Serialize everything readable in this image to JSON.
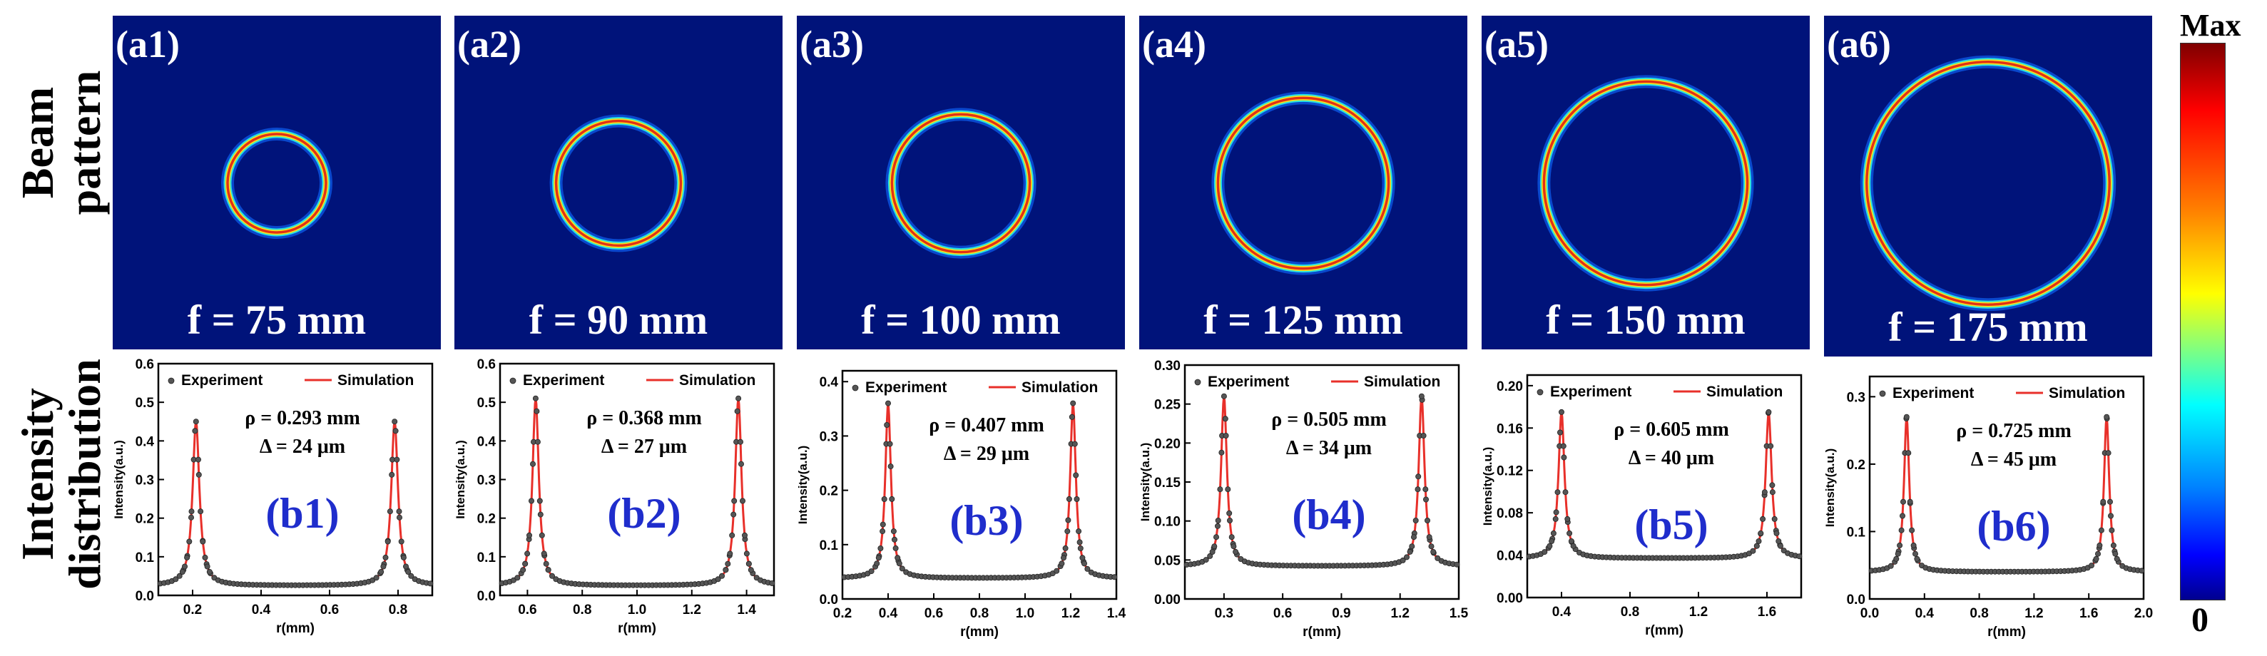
{
  "row_labels": {
    "top": [
      "Beam",
      "pattern"
    ],
    "bottom": [
      "Intensity",
      "distribution"
    ]
  },
  "colorbar": {
    "max_label": "Max",
    "min_label": "0"
  },
  "colors": {
    "panel_bg": "#00137a",
    "sim_line": "#e8302a",
    "exp_marker": "#555555",
    "label_blue": "#1f2dcc"
  },
  "panels": [
    {
      "tag": "(a1)",
      "focal": "f = 75 mm",
      "ring_scale": 0.3
    },
    {
      "tag": "(a2)",
      "focal": "f = 90 mm",
      "ring_scale": 0.38
    },
    {
      "tag": "(a3)",
      "focal": "f = 100 mm",
      "ring_scale": 0.42
    },
    {
      "tag": "(a4)",
      "focal": "f = 125 mm",
      "ring_scale": 0.52
    },
    {
      "tag": "(a5)",
      "focal": "f = 150 mm",
      "ring_scale": 0.62
    },
    {
      "tag": "(a6)",
      "focal": "f = 175 mm",
      "ring_scale": 0.74
    }
  ],
  "chart_data": [
    {
      "type": "line",
      "label": "(b1)",
      "rho": "ρ = 0.293 mm",
      "delta": "Δ = 24 μm",
      "xlabel": "r(mm)",
      "ylabel": "Intensity(a.u.)",
      "legend": [
        "Experiment",
        "Simulation"
      ],
      "xlim": [
        0.1,
        0.9
      ],
      "xticks": [
        0.2,
        0.4,
        0.6,
        0.8
      ],
      "xtick_labels": [
        "0.2",
        "0.4",
        "0.6",
        "0.8"
      ],
      "ylim": [
        0.0,
        0.6
      ],
      "yticks": [
        0.0,
        0.1,
        0.2,
        0.3,
        0.4,
        0.5,
        0.6
      ],
      "ytick_labels": [
        "0.0",
        "0.1",
        "0.2",
        "0.3",
        "0.4",
        "0.5",
        "0.6"
      ],
      "peaks": [
        0.21,
        0.79
      ],
      "peak_height": 0.45,
      "baseline": 0.025,
      "width": 0.012
    },
    {
      "type": "line",
      "label": "(b2)",
      "rho": "ρ = 0.368 mm",
      "delta": "Δ = 27 μm",
      "xlabel": "r(mm)",
      "ylabel": "Intensity(a.u.)",
      "legend": [
        "Experiment",
        "Simulation"
      ],
      "xlim": [
        0.5,
        1.5
      ],
      "xticks": [
        0.6,
        0.8,
        1.0,
        1.2,
        1.4
      ],
      "xtick_labels": [
        "0.6",
        "0.8",
        "1.0",
        "1.2",
        "1.4"
      ],
      "ylim": [
        0.0,
        0.6
      ],
      "yticks": [
        0.0,
        0.1,
        0.2,
        0.3,
        0.4,
        0.5,
        0.6
      ],
      "ytick_labels": [
        "0.0",
        "0.1",
        "0.2",
        "0.3",
        "0.4",
        "0.5",
        "0.6"
      ],
      "peaks": [
        0.63,
        1.37
      ],
      "peak_height": 0.51,
      "baseline": 0.025,
      "width": 0.014
    },
    {
      "type": "line",
      "label": "(b3)",
      "rho": "ρ = 0.407 mm",
      "delta": "Δ = 29 μm",
      "xlabel": "r(mm)",
      "ylabel": "Intensity(a.u.)",
      "legend": [
        "Experiment",
        "Simulation"
      ],
      "xlim": [
        0.2,
        1.4
      ],
      "xticks": [
        0.2,
        0.4,
        0.6,
        0.8,
        1.0,
        1.2,
        1.4
      ],
      "xtick_labels": [
        "0.2",
        "0.4",
        "0.6",
        "0.8",
        "1.0",
        "1.2",
        "1.4"
      ],
      "ylim": [
        0.0,
        0.42
      ],
      "yticks": [
        0.0,
        0.1,
        0.2,
        0.3,
        0.4
      ],
      "ytick_labels": [
        "0.0",
        "0.1",
        "0.2",
        "0.3",
        "0.4"
      ],
      "peaks": [
        0.4,
        1.21
      ],
      "peak_height": 0.36,
      "baseline": 0.038,
      "width": 0.015
    },
    {
      "type": "line",
      "label": "(b4)",
      "rho": "ρ = 0.505 mm",
      "delta": "Δ = 34 μm",
      "xlabel": "r(mm)",
      "ylabel": "Intensity(a.u.)",
      "legend": [
        "Experiment",
        "Simulation"
      ],
      "xlim": [
        0.1,
        1.5
      ],
      "xticks": [
        0.3,
        0.6,
        0.9,
        1.2,
        1.5
      ],
      "xtick_labels": [
        "0.3",
        "0.6",
        "0.9",
        "1.2",
        "1.5"
      ],
      "ylim": [
        0.0,
        0.3
      ],
      "yticks": [
        0.0,
        0.05,
        0.1,
        0.15,
        0.2,
        0.25,
        0.3
      ],
      "ytick_labels": [
        "0.00",
        "0.05",
        "0.10",
        "0.15",
        "0.20",
        "0.25",
        "0.30"
      ],
      "peaks": [
        0.3,
        1.31
      ],
      "peak_height": 0.26,
      "baseline": 0.042,
      "width": 0.018
    },
    {
      "type": "line",
      "label": "(b5)",
      "rho": "ρ = 0.605 mm",
      "delta": "Δ = 40 μm",
      "xlabel": "r(mm)",
      "ylabel": "Intensity(a.u.)",
      "legend": [
        "Experiment",
        "Simulation"
      ],
      "xlim": [
        0.2,
        1.8
      ],
      "xticks": [
        0.4,
        0.8,
        1.2,
        1.6
      ],
      "xtick_labels": [
        "0.4",
        "0.8",
        "1.2",
        "1.6"
      ],
      "ylim": [
        0.0,
        0.21
      ],
      "yticks": [
        0.0,
        0.04,
        0.08,
        0.12,
        0.16,
        0.2
      ],
      "ytick_labels": [
        "0.00",
        "0.04",
        "0.08",
        "0.12",
        "0.16",
        "0.20"
      ],
      "peaks": [
        0.4,
        1.61
      ],
      "peak_height": 0.175,
      "baseline": 0.037,
      "width": 0.021
    },
    {
      "type": "line",
      "label": "(b6)",
      "rho": "ρ = 0.725 mm",
      "delta": "Δ = 45 μm",
      "xlabel": "r(mm)",
      "ylabel": "Intensity(a.u.)",
      "legend": [
        "Experiment",
        "Simulation"
      ],
      "xlim": [
        0.0,
        2.0
      ],
      "xticks": [
        0.0,
        0.4,
        0.8,
        1.2,
        1.6,
        2.0
      ],
      "xtick_labels": [
        "0.0",
        "0.4",
        "0.8",
        "1.2",
        "1.6",
        "2.0"
      ],
      "ylim": [
        0.0,
        0.33
      ],
      "yticks": [
        0.0,
        0.1,
        0.2,
        0.3
      ],
      "ytick_labels": [
        "0.0",
        "0.1",
        "0.2",
        "0.3"
      ],
      "peaks": [
        0.27,
        1.73
      ],
      "peak_height": 0.27,
      "baseline": 0.04,
      "width": 0.023
    }
  ]
}
